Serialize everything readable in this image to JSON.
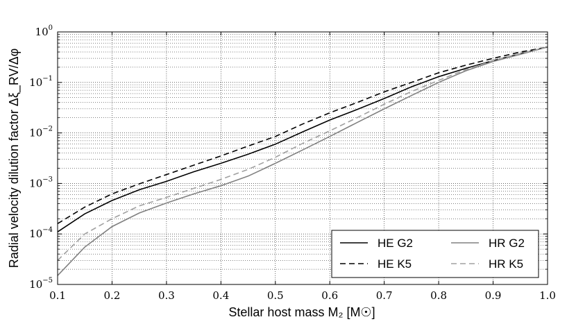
{
  "chart_data": {
    "type": "line",
    "xlabel": "Stellar host mass M₂ [M☉]",
    "ylabel": "Radial velocity dilution factor Δξ_RV/Δφ",
    "xlim": [
      0.1,
      1.0
    ],
    "ylim": [
      1e-05,
      1
    ],
    "yscale": "log",
    "grid": true,
    "legend_position": "lower-right",
    "x_ticks": [
      "0.1",
      "0.2",
      "0.3",
      "0.4",
      "0.5",
      "0.6",
      "0.7",
      "0.8",
      "0.9",
      "1.0"
    ],
    "y_ticks": [
      {
        "base": "10",
        "exp": "0",
        "value": 1
      },
      {
        "base": "10",
        "exp": "−1",
        "value": 0.1
      },
      {
        "base": "10",
        "exp": "−2",
        "value": 0.01
      },
      {
        "base": "10",
        "exp": "−3",
        "value": 0.001
      },
      {
        "base": "10",
        "exp": "−4",
        "value": 0.0001
      },
      {
        "base": "10",
        "exp": "−5",
        "value": 1e-05
      }
    ],
    "series": [
      {
        "name": "HE G2",
        "color": "#000000",
        "dash": "solid",
        "x": [
          0.1,
          0.15,
          0.2,
          0.25,
          0.3,
          0.35,
          0.4,
          0.45,
          0.5,
          0.55,
          0.6,
          0.65,
          0.7,
          0.75,
          0.8,
          0.85,
          0.9,
          0.95,
          1.0
        ],
        "y": [
          0.00011,
          0.00025,
          0.00046,
          0.00075,
          0.0011,
          0.0017,
          0.0025,
          0.0038,
          0.006,
          0.0105,
          0.018,
          0.029,
          0.048,
          0.082,
          0.13,
          0.19,
          0.27,
          0.37,
          0.5
        ]
      },
      {
        "name": "HE K5",
        "color": "#000000",
        "dash": "dashed",
        "x": [
          0.1,
          0.15,
          0.2,
          0.25,
          0.3,
          0.35,
          0.4,
          0.45,
          0.5,
          0.55,
          0.6,
          0.65,
          0.7,
          0.75,
          0.8,
          0.85,
          0.9,
          0.95,
          1.0
        ],
        "y": [
          0.00016,
          0.00034,
          0.00062,
          0.00098,
          0.0015,
          0.0023,
          0.0035,
          0.0055,
          0.0085,
          0.015,
          0.025,
          0.04,
          0.065,
          0.1,
          0.155,
          0.22,
          0.3,
          0.4,
          0.5
        ]
      },
      {
        "name": "HR G2",
        "color": "#808080",
        "dash": "solid",
        "x": [
          0.1,
          0.15,
          0.2,
          0.25,
          0.3,
          0.35,
          0.4,
          0.45,
          0.5,
          0.55,
          0.6,
          0.65,
          0.7,
          0.75,
          0.8,
          0.85,
          0.9,
          0.95,
          1.0
        ],
        "y": [
          1.5e-05,
          5.5e-05,
          0.00014,
          0.00026,
          0.00041,
          0.00062,
          0.0009,
          0.0014,
          0.0025,
          0.0046,
          0.0085,
          0.016,
          0.03,
          0.055,
          0.1,
          0.17,
          0.26,
          0.36,
          0.5
        ]
      },
      {
        "name": "HR K5",
        "color": "#a0a0a0",
        "dash": "dashed",
        "x": [
          0.1,
          0.15,
          0.2,
          0.25,
          0.3,
          0.35,
          0.4,
          0.45,
          0.5,
          0.55,
          0.6,
          0.65,
          0.7,
          0.75,
          0.8,
          0.85,
          0.9,
          0.95,
          1.0
        ],
        "y": [
          3e-05,
          0.0001,
          0.0002,
          0.00036,
          0.00053,
          0.0008,
          0.0012,
          0.0019,
          0.0033,
          0.0062,
          0.011,
          0.02,
          0.037,
          0.066,
          0.11,
          0.18,
          0.27,
          0.37,
          0.5
        ]
      }
    ],
    "legend_order": [
      0,
      2,
      1,
      3
    ]
  }
}
